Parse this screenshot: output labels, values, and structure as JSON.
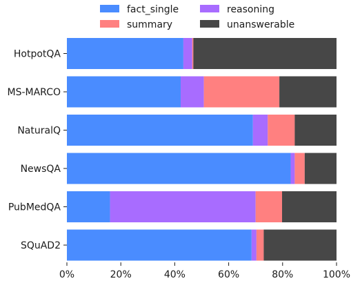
{
  "chart_data": {
    "type": "bar",
    "orientation": "horizontal",
    "stacked": true,
    "normalized": true,
    "categories": [
      "HotpotQA",
      "MS-MARCO",
      "NaturalQ",
      "NewsQA",
      "PubMedQA",
      "SQuAD2"
    ],
    "series": [
      {
        "name": "fact_single",
        "color": "#4a8cff",
        "values": [
          43.2,
          42.2,
          69.0,
          83.0,
          16.0,
          68.5
        ]
      },
      {
        "name": "reasoning",
        "color": "#a86cff",
        "values": [
          3.3,
          8.6,
          5.5,
          1.5,
          54.0,
          1.8
        ]
      },
      {
        "name": "summary",
        "color": "#ff8080",
        "values": [
          0.4,
          28.0,
          10.0,
          3.7,
          9.8,
          2.7
        ]
      },
      {
        "name": "unanswerable",
        "color": "#474747",
        "values": [
          53.1,
          21.2,
          15.5,
          11.8,
          20.2,
          27.0
        ]
      }
    ],
    "xlim": [
      0,
      100
    ],
    "xticks": [
      "0%",
      "20%",
      "40%",
      "60%",
      "80%",
      "100%"
    ],
    "xlabel": "",
    "ylabel": "",
    "title": "",
    "legend": {
      "placement": "top-center",
      "columns": 2
    },
    "grid": false
  }
}
